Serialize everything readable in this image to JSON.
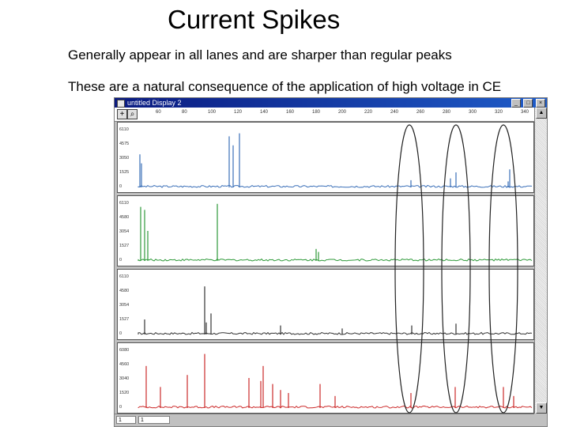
{
  "slide": {
    "title": "Current Spikes",
    "bullets": [
      "Generally appear in all lanes and are sharper than regular peaks",
      "These are a natural consequence of the application of high voltage in CE"
    ]
  },
  "window": {
    "title": "untitled Display 2",
    "controls": [
      "_",
      "□",
      "×"
    ],
    "scale_labels": [
      "60",
      "80",
      "100",
      "120",
      "140",
      "160",
      "180",
      "200",
      "220",
      "240",
      "260",
      "280",
      "300",
      "320",
      "340"
    ],
    "status_fields": [
      "1",
      "1"
    ]
  },
  "lanes": [
    {
      "color": "#3a6fb8",
      "y_ticks": [
        "6110",
        "4575",
        "3050",
        "1525",
        "0"
      ]
    },
    {
      "color": "#2f9a3a",
      "y_ticks": [
        "6110",
        "4580",
        "3054",
        "1527",
        "0"
      ]
    },
    {
      "color": "#333333",
      "y_ticks": [
        "6110",
        "4580",
        "3054",
        "1527",
        "0"
      ]
    },
    {
      "color": "#cc2a2a",
      "y_ticks": [
        "6080",
        "4560",
        "3040",
        "1520",
        "0"
      ]
    }
  ],
  "annotation_color": "#222222"
}
